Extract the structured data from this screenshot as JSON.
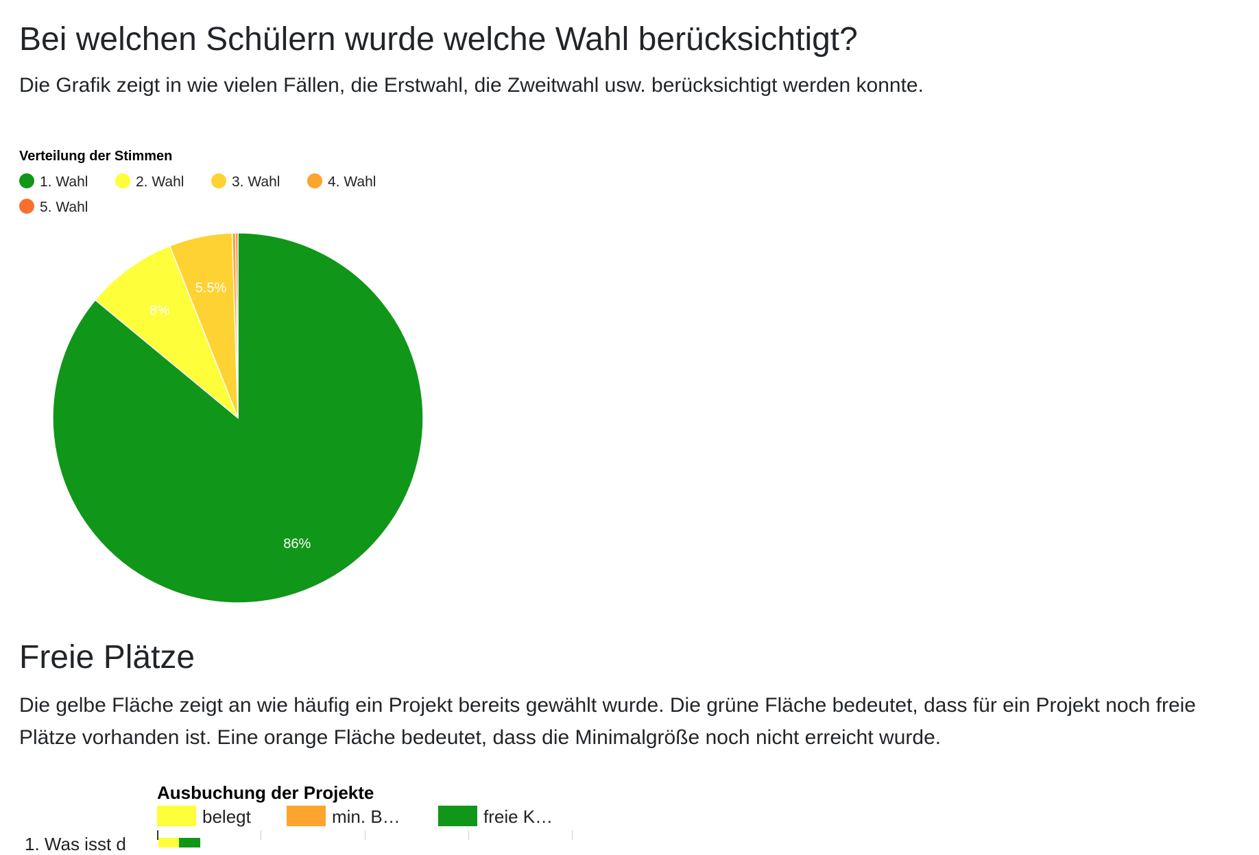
{
  "section1": {
    "heading": "Bei welchen Schülern wurde welche Wahl berücksichtigt?",
    "description": "Die Grafik zeigt in wie vielen Fällen, die Erstwahl, die Zweitwahl usw. berücksichtigt werden konnte."
  },
  "section2": {
    "heading": "Freie Plätze",
    "description": "Die gelbe Fläche zeigt an wie häufig ein Projekt bereits gewählt wurde. Die grüne Fläche bedeutet, dass für ein Projekt noch freie Plätze vorhanden ist. Eine orange Fläche bedeutet, dass die Minimalgröße noch nicht erreicht wurde."
  },
  "chart_data": [
    {
      "type": "pie",
      "title": "Verteilung der Stimmen",
      "legend_position": "top",
      "categories": [
        "1. Wahl",
        "2. Wahl",
        "3. Wahl",
        "4. Wahl",
        "5. Wahl"
      ],
      "values": [
        86,
        8,
        5.5,
        0.3,
        0.2
      ],
      "data_labels": [
        "86%",
        "8%",
        "5.5%",
        "",
        ""
      ],
      "colors": [
        "#109618",
        "#fefe3a",
        "#fed232",
        "#fca42e",
        "#fb6f2c"
      ]
    },
    {
      "type": "bar",
      "orientation": "horizontal",
      "stacked": true,
      "title": "Ausbuchung der Projekte",
      "legend_position": "top",
      "categories": [
        "1. Was isst d"
      ],
      "series": [
        {
          "name": "belegt",
          "color": "#fefe3a",
          "values": [
            1
          ]
        },
        {
          "name": "min. B…",
          "color": "#fca42e",
          "values": [
            0
          ]
        },
        {
          "name": "freie K…",
          "color": "#109618",
          "values": [
            1
          ]
        }
      ],
      "xlim": [
        0,
        20
      ],
      "grid": true
    }
  ]
}
